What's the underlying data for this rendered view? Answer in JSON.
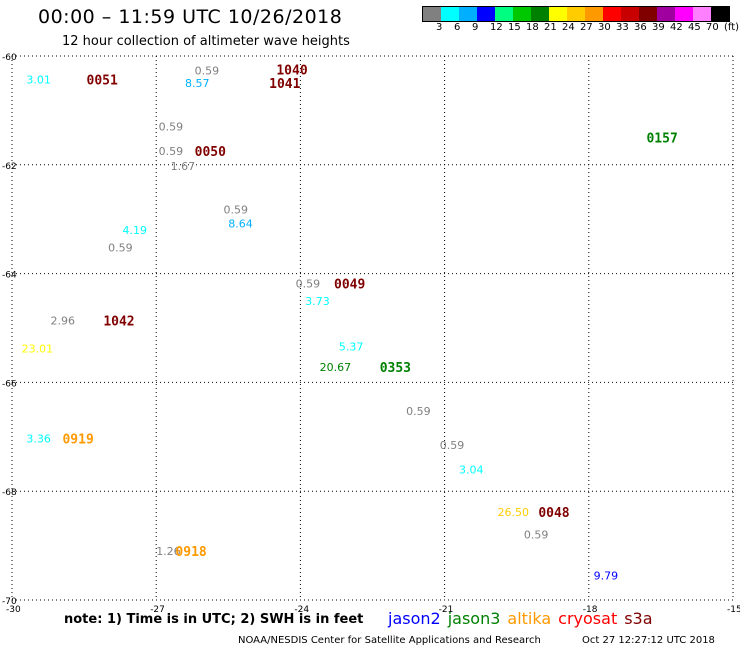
{
  "header": {
    "title": "00:00 – 11:59 UTC 10/26/2018",
    "subtitle": "12 hour collection of altimeter wave heights"
  },
  "colorbar": {
    "colors": [
      "#808080",
      "#00ffff",
      "#00b0ff",
      "#0000ff",
      "#00ff80",
      "#00c800",
      "#008000",
      "#ffff00",
      "#ffcc00",
      "#ff9900",
      "#ff0000",
      "#c80000",
      "#800000",
      "#a000a0",
      "#ff00ff",
      "#ff80ff",
      "#000000"
    ],
    "labels": [
      "3",
      "6",
      "9",
      "12",
      "15",
      "18",
      "21",
      "24",
      "27",
      "30",
      "33",
      "36",
      "39",
      "42",
      "45",
      "70",
      "(ft)"
    ]
  },
  "axes": {
    "y_ticks": [
      "-60",
      "-62",
      "-64",
      "-66",
      "-68",
      "-70"
    ],
    "x_ticks": [
      "-30",
      "-27",
      "-24",
      "-21",
      "-18",
      "-15"
    ]
  },
  "map_data": {
    "type": "altimeter-wave-heights",
    "lon_range": [
      -30,
      -15
    ],
    "lat_range": [
      -70,
      -60
    ],
    "wave_heights": [
      {
        "text": "3.01",
        "lon": -29.7,
        "lat": -60.43,
        "color": "#00ffff"
      },
      {
        "text": "0.59",
        "lon": -26.2,
        "lat": -60.27,
        "color": "#808080"
      },
      {
        "text": "8.57",
        "lon": -26.4,
        "lat": -60.5,
        "color": "#00b0ff"
      },
      {
        "text": "0.59",
        "lon": -26.95,
        "lat": -61.3,
        "color": "#808080"
      },
      {
        "text": "0.59",
        "lon": -26.95,
        "lat": -61.75,
        "color": "#808080"
      },
      {
        "text": "1.67",
        "lon": -26.7,
        "lat": -62.02,
        "color": "#808080"
      },
      {
        "text": "0.59",
        "lon": -25.6,
        "lat": -62.82,
        "color": "#808080"
      },
      {
        "text": "8.64",
        "lon": -25.5,
        "lat": -63.08,
        "color": "#00b0ff"
      },
      {
        "text": "4.19",
        "lon": -27.7,
        "lat": -63.2,
        "color": "#00ffff"
      },
      {
        "text": "0.59",
        "lon": -28.0,
        "lat": -63.52,
        "color": "#808080"
      },
      {
        "text": "0.59",
        "lon": -24.1,
        "lat": -64.18,
        "color": "#808080"
      },
      {
        "text": "3.73",
        "lon": -23.9,
        "lat": -64.5,
        "color": "#00ffff"
      },
      {
        "text": "2.96",
        "lon": -29.2,
        "lat": -64.86,
        "color": "#808080"
      },
      {
        "text": "23.01",
        "lon": -29.8,
        "lat": -65.38,
        "color": "#ffff00"
      },
      {
        "text": "5.37",
        "lon": -23.2,
        "lat": -65.34,
        "color": "#00ffff"
      },
      {
        "text": "20.67",
        "lon": -23.6,
        "lat": -65.72,
        "color": "#008000"
      },
      {
        "text": "0.59",
        "lon": -21.8,
        "lat": -66.53,
        "color": "#808080"
      },
      {
        "text": "3.36",
        "lon": -29.7,
        "lat": -67.03,
        "color": "#00ffff"
      },
      {
        "text": "0.59",
        "lon": -21.1,
        "lat": -67.15,
        "color": "#808080"
      },
      {
        "text": "3.04",
        "lon": -20.7,
        "lat": -67.6,
        "color": "#00ffff"
      },
      {
        "text": "26.50",
        "lon": -19.9,
        "lat": -68.38,
        "color": "#ffcc00"
      },
      {
        "text": "0.59",
        "lon": -19.35,
        "lat": -68.8,
        "color": "#808080"
      },
      {
        "text": "1.26",
        "lon": -27.0,
        "lat": -69.1,
        "color": "#808080"
      },
      {
        "text": "9.79",
        "lon": -17.9,
        "lat": -69.55,
        "color": "#0000ff"
      }
    ],
    "pass_labels": [
      {
        "text": "0051",
        "lon": -28.45,
        "lat": -60.43,
        "color": "#800000"
      },
      {
        "text": "1040",
        "lon": -24.5,
        "lat": -60.25,
        "color": "#800000"
      },
      {
        "text": "1041",
        "lon": -24.65,
        "lat": -60.5,
        "color": "#800000"
      },
      {
        "text": "0050",
        "lon": -26.2,
        "lat": -61.75,
        "color": "#800000"
      },
      {
        "text": "0157",
        "lon": -16.8,
        "lat": -61.5,
        "color": "#008000"
      },
      {
        "text": "0049",
        "lon": -23.3,
        "lat": -64.18,
        "color": "#800000"
      },
      {
        "text": "1042",
        "lon": -28.1,
        "lat": -64.86,
        "color": "#800000"
      },
      {
        "text": "0353",
        "lon": -22.35,
        "lat": -65.72,
        "color": "#008000"
      },
      {
        "text": "0919",
        "lon": -28.95,
        "lat": -67.03,
        "color": "#ff9900"
      },
      {
        "text": "0048",
        "lon": -19.05,
        "lat": -68.38,
        "color": "#800000"
      },
      {
        "text": "0918",
        "lon": -26.6,
        "lat": -69.1,
        "color": "#ff9900"
      }
    ]
  },
  "footer": {
    "note": "note: 1) Time is in UTC; 2) SWH is in feet",
    "satellites": [
      {
        "name": "jason2",
        "color": "#0000ff"
      },
      {
        "name": "jason3",
        "color": "#008000"
      },
      {
        "name": "altika",
        "color": "#ff9900"
      },
      {
        "name": "cryosat",
        "color": "#ff0000"
      },
      {
        "name": "s3a",
        "color": "#800000"
      }
    ],
    "credit": "NOAA/NESDIS Center for Satellite Applications and Research",
    "timestamp": "Oct 27 12:27:12 UTC 2018"
  }
}
